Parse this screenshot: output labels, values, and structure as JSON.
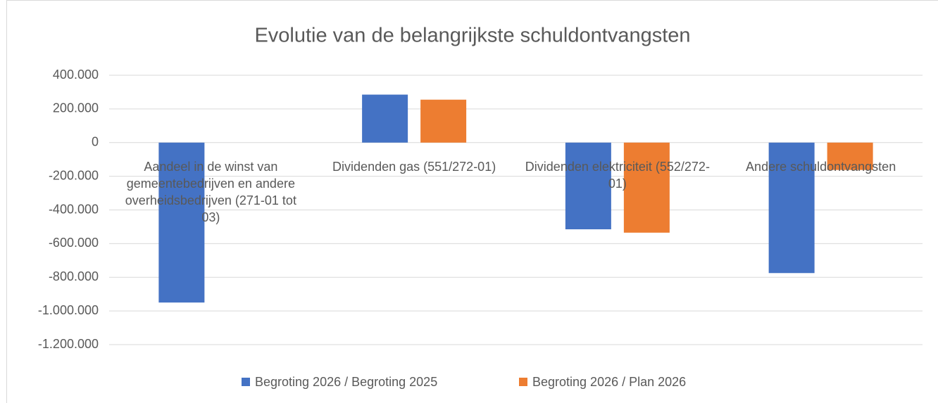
{
  "chart_data": {
    "type": "bar",
    "title": "Evolutie van de belangrijkste schuldontvangsten",
    "categories": [
      "Aandeel in de winst van gemeentebedrijven en andere overheidsbedrijven (271-01 tot 03)",
      "Dividenden gas (551/272-01)",
      "Dividenden elektriciteit (552/272-01)",
      "Andere schuldontvangsten"
    ],
    "series": [
      {
        "name": "Begroting 2026 /  Begroting 2025",
        "color": "#4472c4",
        "values": [
          -950000,
          285000,
          -515000,
          -775000
        ]
      },
      {
        "name": "Begroting 2026 / Plan 2026",
        "color": "#ed7d31",
        "values": [
          0,
          255000,
          -535000,
          -162500
        ]
      }
    ],
    "ylim": [
      -1200000,
      400000
    ],
    "yticks": [
      {
        "value": -1200000,
        "label": "-1.200.000"
      },
      {
        "value": -1000000,
        "label": "-1.000.000"
      },
      {
        "value": -800000,
        "label": "-800.000"
      },
      {
        "value": -600000,
        "label": "-600.000"
      },
      {
        "value": -400000,
        "label": "-400.000"
      },
      {
        "value": -200000,
        "label": "-200.000"
      },
      0,
      {
        "value": 200000,
        "label": "200.000"
      },
      {
        "value": 400000,
        "label": "400.000"
      }
    ],
    "grid": true,
    "legend": "bottom"
  }
}
